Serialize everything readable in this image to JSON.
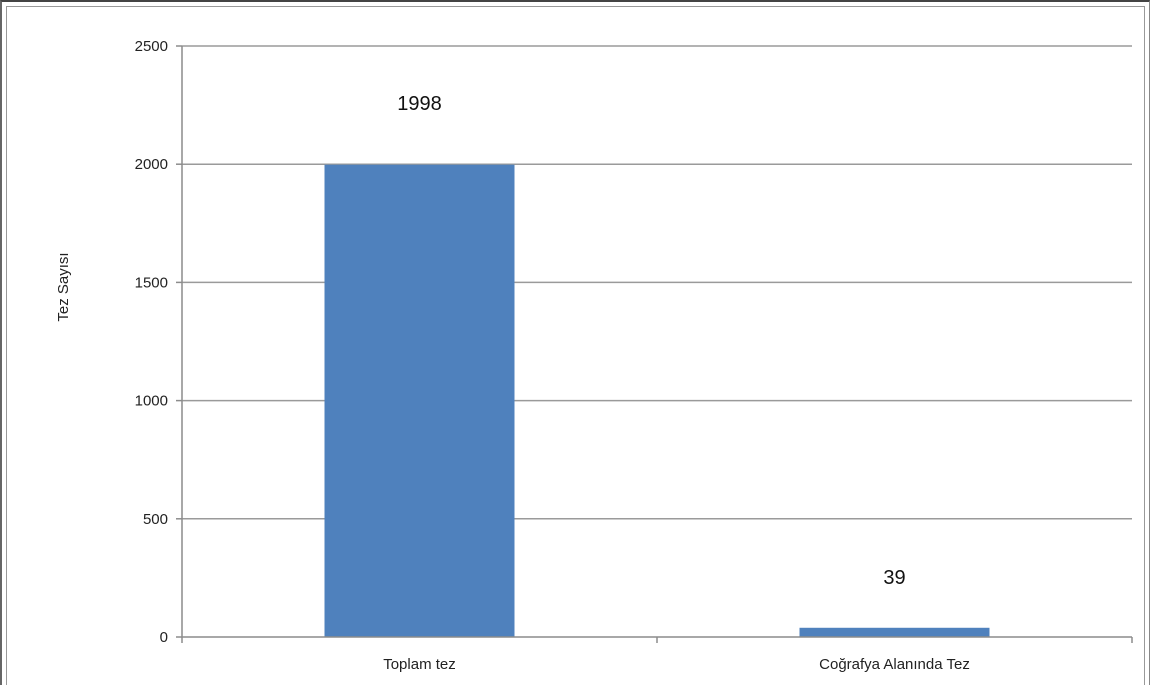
{
  "chart_data": {
    "type": "bar",
    "title": "",
    "xlabel": "",
    "ylabel": "Tez Sayısı",
    "categories": [
      "Toplam tez",
      "Coğrafya Alanında Tez"
    ],
    "values": [
      1998,
      39
    ],
    "data_labels": [
      "1998",
      "39"
    ],
    "ylim": [
      0,
      2500
    ],
    "yticks": [
      0,
      500,
      1000,
      1500,
      2000,
      2500
    ],
    "grid": true,
    "legend": "none",
    "colors": {
      "bar": "#4F81BD",
      "grid": "#9a9a9a",
      "axis": "#8c8c8c"
    }
  }
}
